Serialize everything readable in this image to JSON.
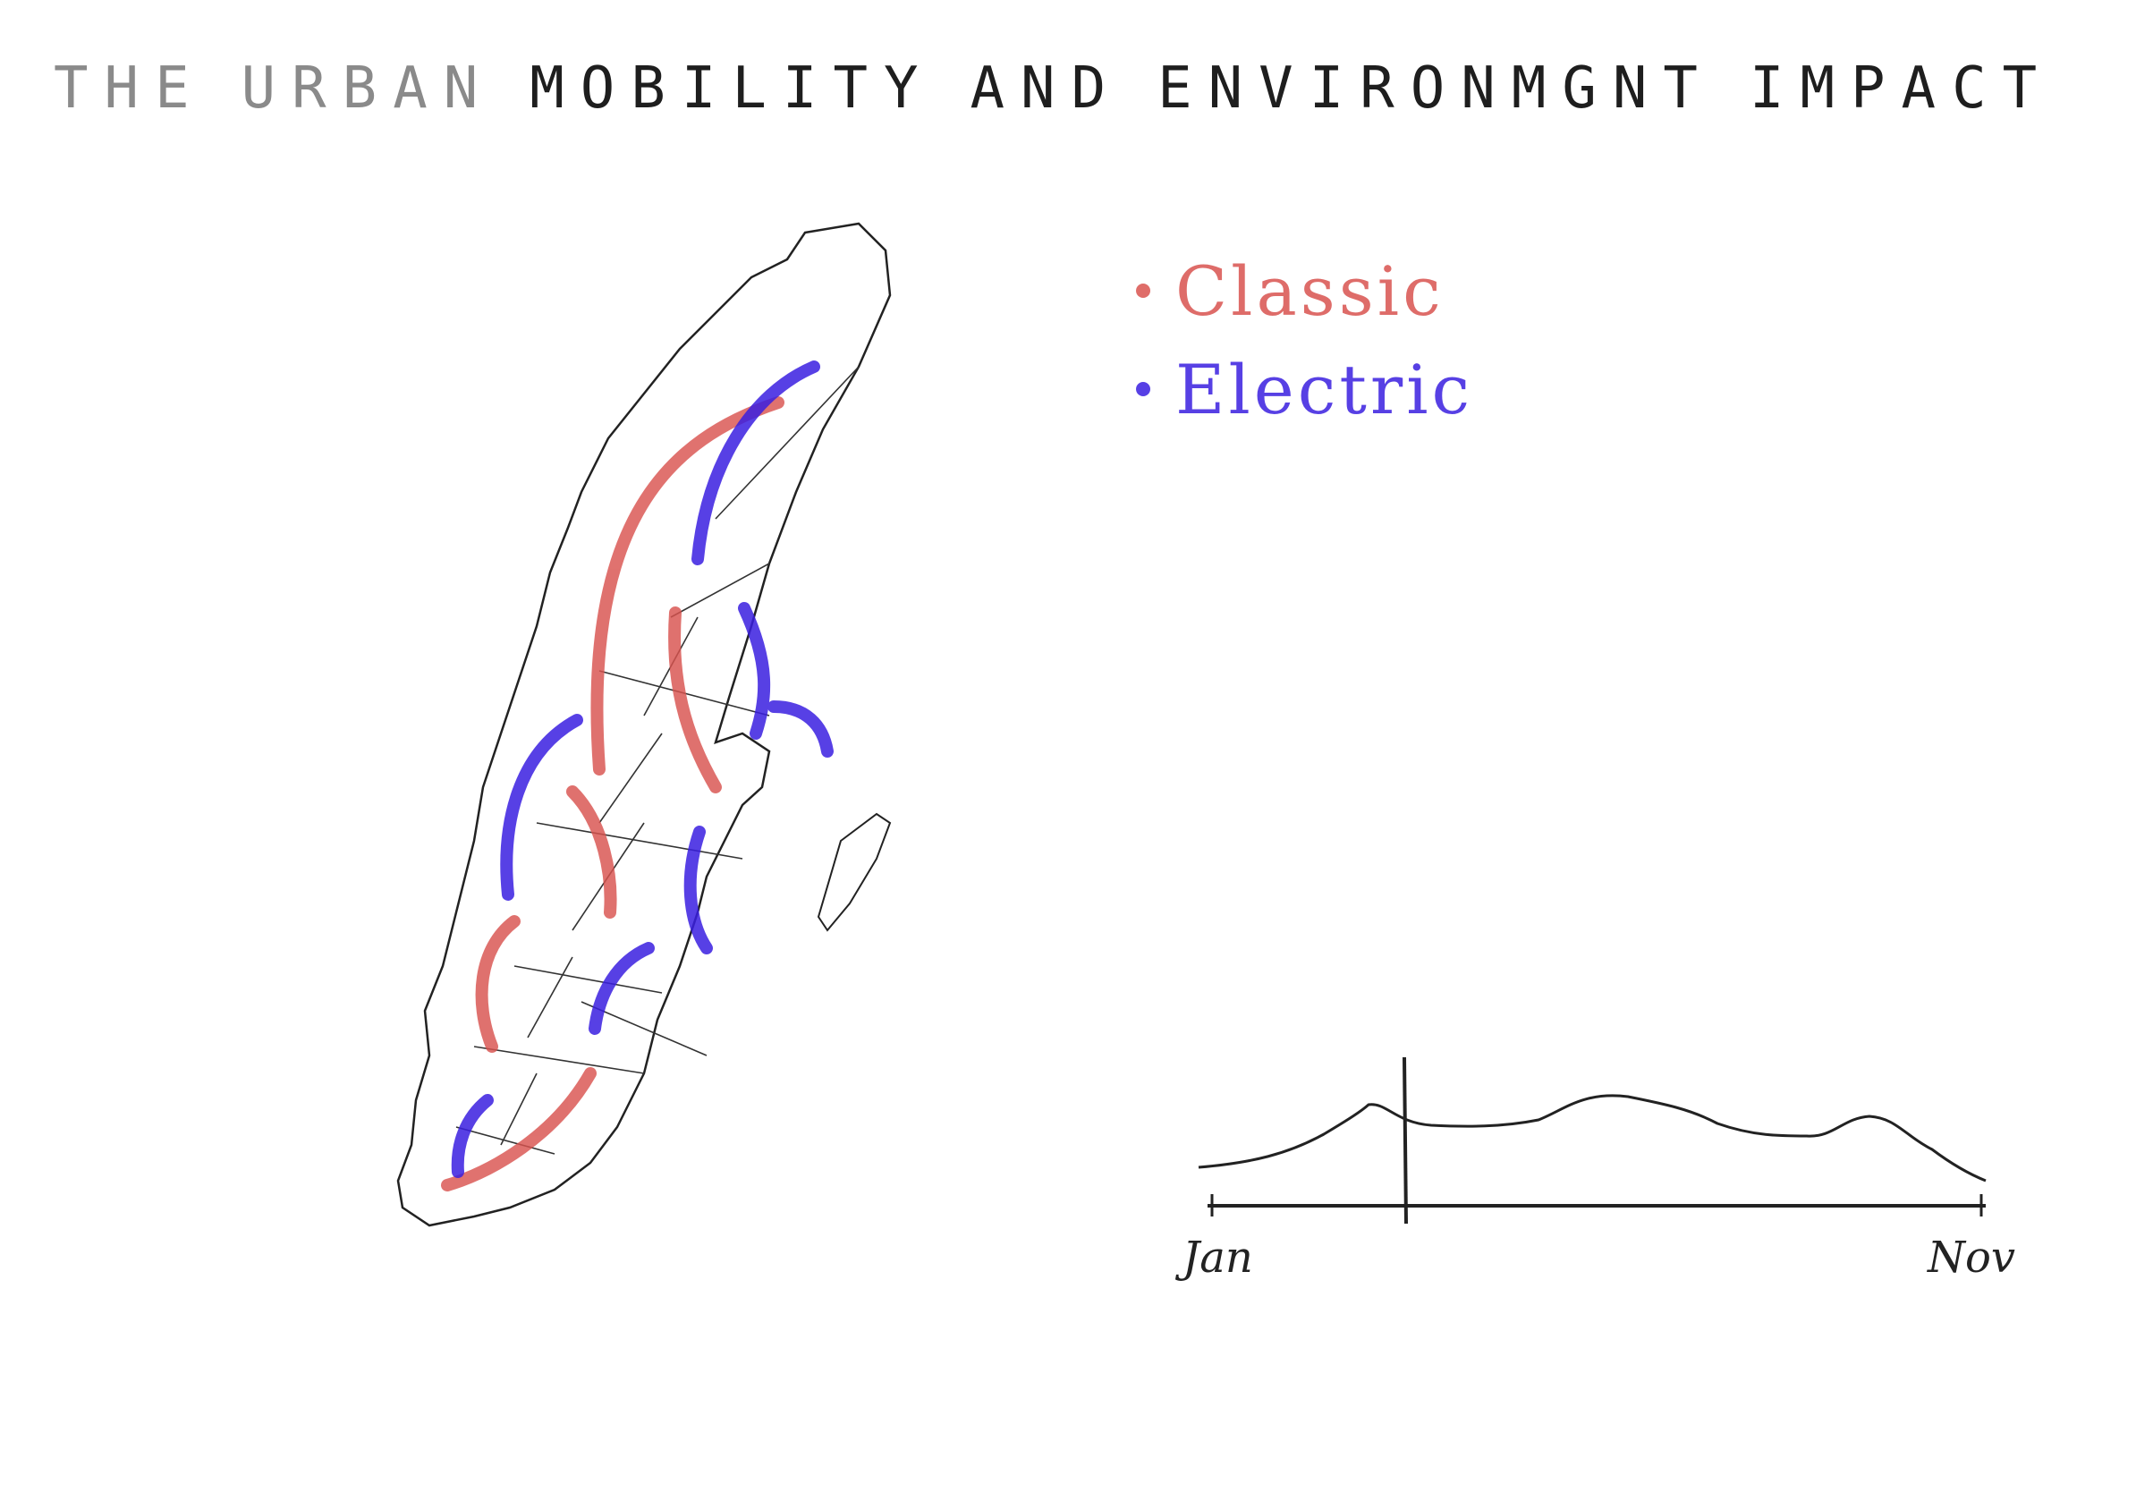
{
  "title": {
    "words": [
      "THE",
      "URBAN",
      "MOBILITY",
      "AND",
      "ENVIRONMGNT",
      "IMPACT"
    ]
  },
  "legend": {
    "items": [
      {
        "label": "Classic",
        "color": "#d9534f"
      },
      {
        "label": "Electric",
        "color": "#3a1fe0"
      }
    ]
  },
  "timeline": {
    "start_label": "Jan",
    "end_label": "Nov"
  },
  "colors": {
    "outline": "#222222",
    "classic": "#d9534f",
    "electric": "#3a1fe0"
  }
}
